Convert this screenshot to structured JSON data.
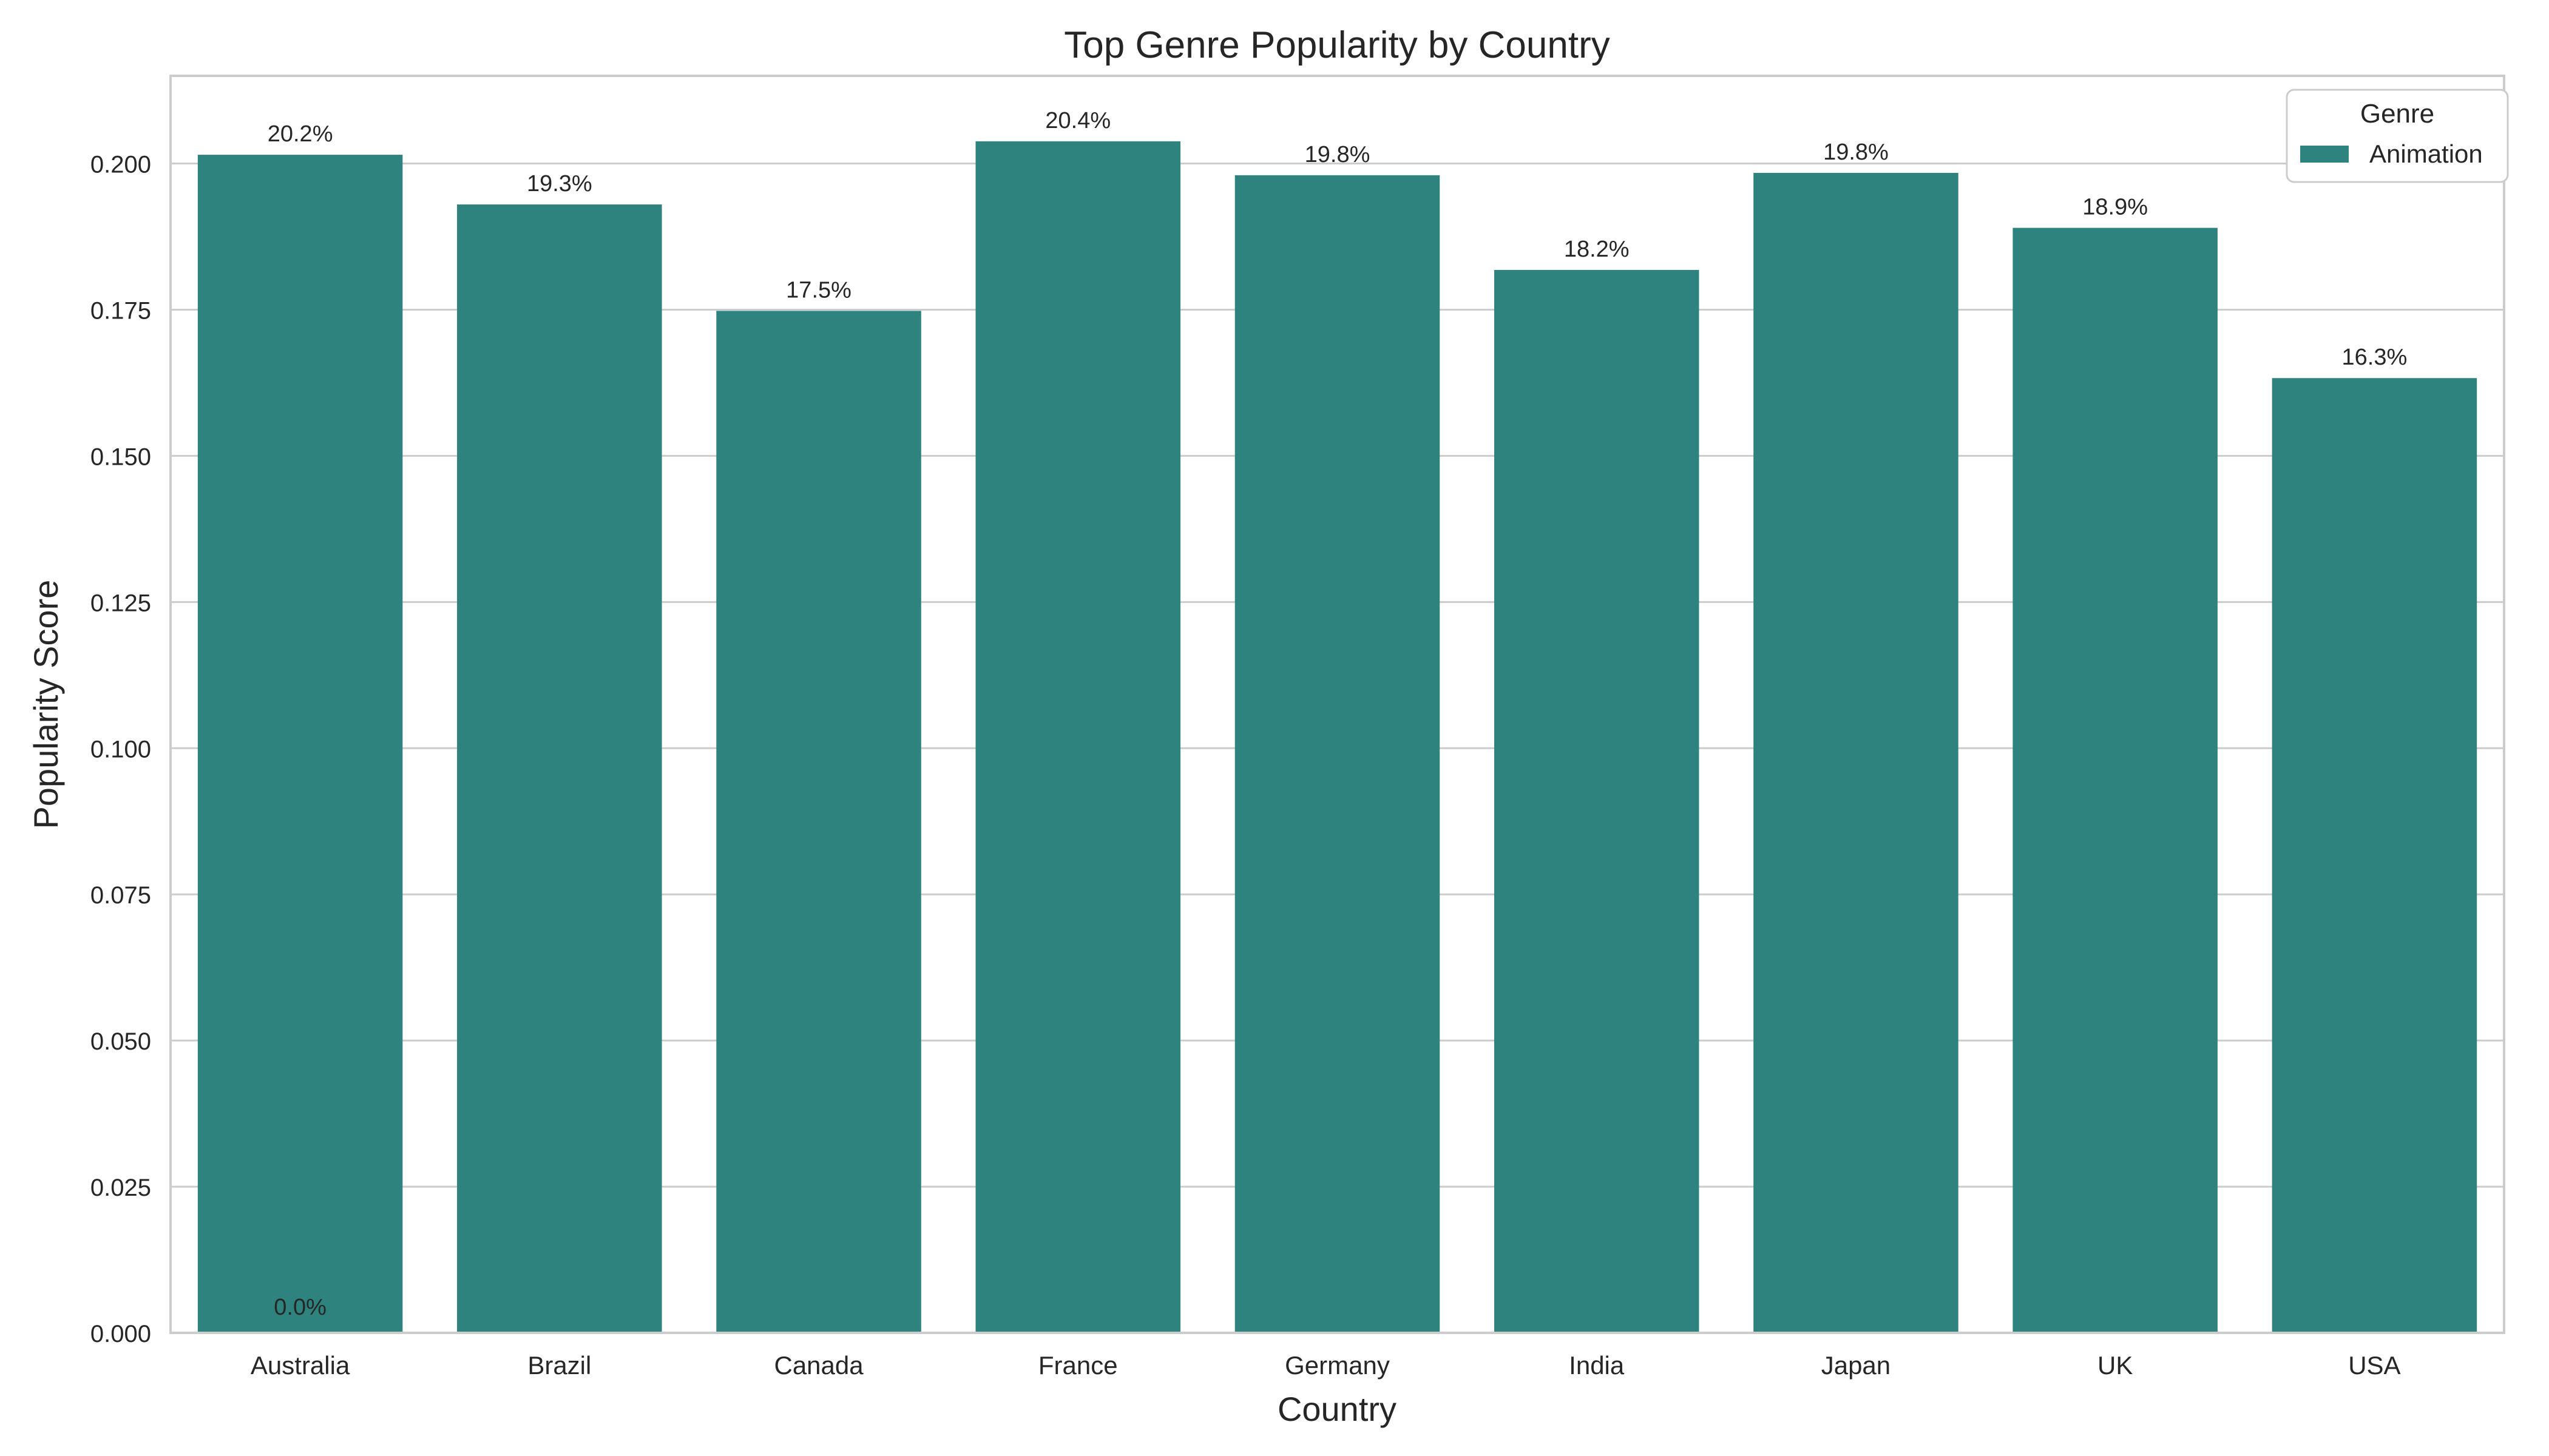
{
  "chart_data": {
    "type": "bar",
    "title": "Top Genre Popularity by Country",
    "xlabel": "Country",
    "ylabel": "Popularity Score",
    "categories": [
      "Australia",
      "Brazil",
      "Canada",
      "France",
      "Germany",
      "India",
      "Japan",
      "UK",
      "USA"
    ],
    "series": [
      {
        "name": "Animation",
        "values": [
          0.2015,
          0.193,
          0.1748,
          0.2038,
          0.198,
          0.1818,
          0.1984,
          0.189,
          0.1633
        ]
      }
    ],
    "data_labels": [
      "20.2%",
      "19.3%",
      "17.5%",
      "20.4%",
      "19.8%",
      "18.2%",
      "19.8%",
      "18.9%",
      "16.3%"
    ],
    "extra_annotation": "0.0%",
    "ylim": [
      0,
      0.215
    ],
    "yticks": [
      "0.000",
      "0.025",
      "0.050",
      "0.075",
      "0.100",
      "0.125",
      "0.150",
      "0.175",
      "0.200"
    ],
    "ytick_values": [
      0,
      0.025,
      0.05,
      0.075,
      0.1,
      0.125,
      0.15,
      0.175,
      0.2
    ],
    "grid": "horizontal",
    "legend": {
      "title": "Genre",
      "position": "top-right",
      "entries": [
        "Animation"
      ]
    },
    "colors": {
      "bar": "#2e837e",
      "grid": "#cccccc",
      "axis": "#cccccc",
      "text": "#262626"
    }
  }
}
